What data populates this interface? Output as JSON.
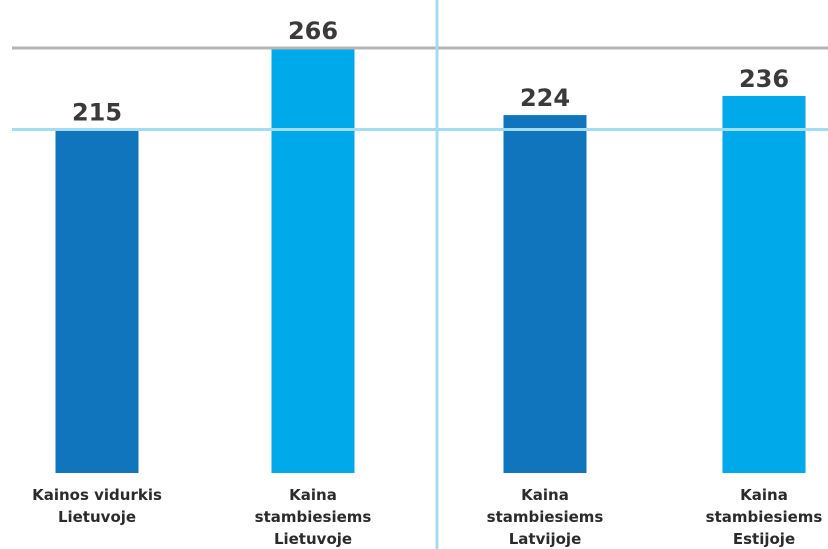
{
  "chart_data": {
    "type": "bar",
    "categories": [
      [
        "Kainos vidurkis",
        "Lietuvoje"
      ],
      [
        "Kaina",
        "stambiesiems",
        "Lietuvoje"
      ],
      [
        "Kaina",
        "stambiesiems",
        "Latvijoje"
      ],
      [
        "Kaina",
        "stambiesiems",
        "Estijoje"
      ]
    ],
    "values": [
      215,
      266,
      224,
      236
    ],
    "value_labels": [
      "215",
      "266",
      "224",
      "236"
    ],
    "bar_colors": [
      "#1075bd",
      "#00a9e9",
      "#1075bd",
      "#00a9e9"
    ],
    "reference_lines": [
      {
        "value": 266,
        "color": "#b5b5b5"
      },
      {
        "value": 215,
        "color": "#a3dcf3"
      }
    ],
    "divider_color": "#a3dcf3",
    "ylim": [
      0,
      266
    ],
    "grid": false,
    "title": "",
    "xlabel": "",
    "ylabel": ""
  }
}
